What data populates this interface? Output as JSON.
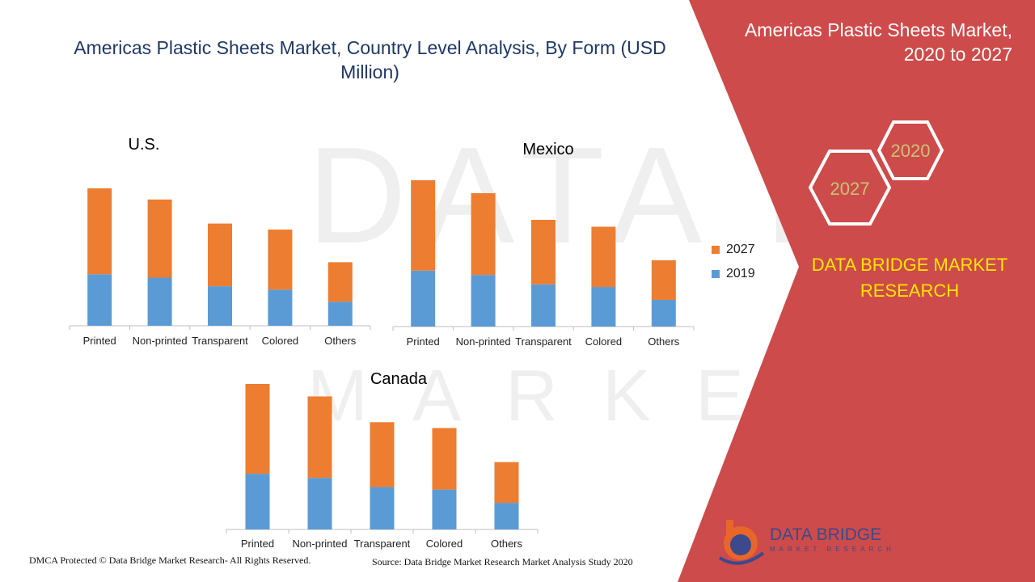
{
  "page": {
    "title": "Americas Plastic Sheets Market, Country Level Analysis, By Form (USD Million)",
    "banner_title": "Americas Plastic Sheets Market, 2020 to 2027",
    "hex_labels": [
      "2020",
      "2027"
    ],
    "brand_title": "DATA BRIDGE MARKET RESEARCH",
    "logo_name": "DATA BRIDGE",
    "logo_sub": "MARKET RESEARCH",
    "footer_left": "DMCA Protected © Data Bridge Market Research- All Rights Reserved.",
    "footer_right": "Source: Data Bridge Market Research Market Analysis Study 2020",
    "colors": {
      "panel": "#cd4b4a",
      "title": "#1f3864",
      "brand": "#ffe600",
      "hex_text": "#c9c27a",
      "series_2019": "#5b9bd5",
      "series_2027": "#ed7d31"
    }
  },
  "legend": [
    {
      "name": "2027",
      "color": "#ed7d31"
    },
    {
      "name": "2019",
      "color": "#5b9bd5"
    }
  ],
  "chart_data": [
    {
      "type": "bar",
      "stacked": true,
      "title": "U.S.",
      "categories": [
        "Printed",
        "Non-printed",
        "Transparent",
        "Colored",
        "Others"
      ],
      "series": [
        {
          "name": "2019",
          "values": [
            60,
            56,
            46,
            42,
            28
          ]
        },
        {
          "name": "2027",
          "values": [
            100,
            91,
            73,
            70,
            46
          ]
        }
      ],
      "ylim": [
        0,
        160
      ],
      "grid": false,
      "legend": "right"
    },
    {
      "type": "bar",
      "stacked": true,
      "title": "Mexico",
      "categories": [
        "Printed",
        "Non-printed",
        "Transparent",
        "Colored",
        "Others"
      ],
      "series": [
        {
          "name": "2019",
          "values": [
            65,
            60,
            49,
            46,
            31
          ]
        },
        {
          "name": "2027",
          "values": [
            105,
            95,
            75,
            70,
            46
          ]
        }
      ],
      "ylim": [
        0,
        170
      ],
      "grid": false,
      "legend": "right"
    },
    {
      "type": "bar",
      "stacked": true,
      "title": "Canada",
      "categories": [
        "Printed",
        "Non-printed",
        "Transparent",
        "Colored",
        "Others"
      ],
      "series": [
        {
          "name": "2019",
          "values": [
            67,
            62,
            51,
            48,
            32
          ]
        },
        {
          "name": "2027",
          "values": [
            108,
            98,
            78,
            74,
            49
          ]
        }
      ],
      "ylim": [
        0,
        175
      ],
      "grid": false,
      "legend": "right"
    }
  ]
}
